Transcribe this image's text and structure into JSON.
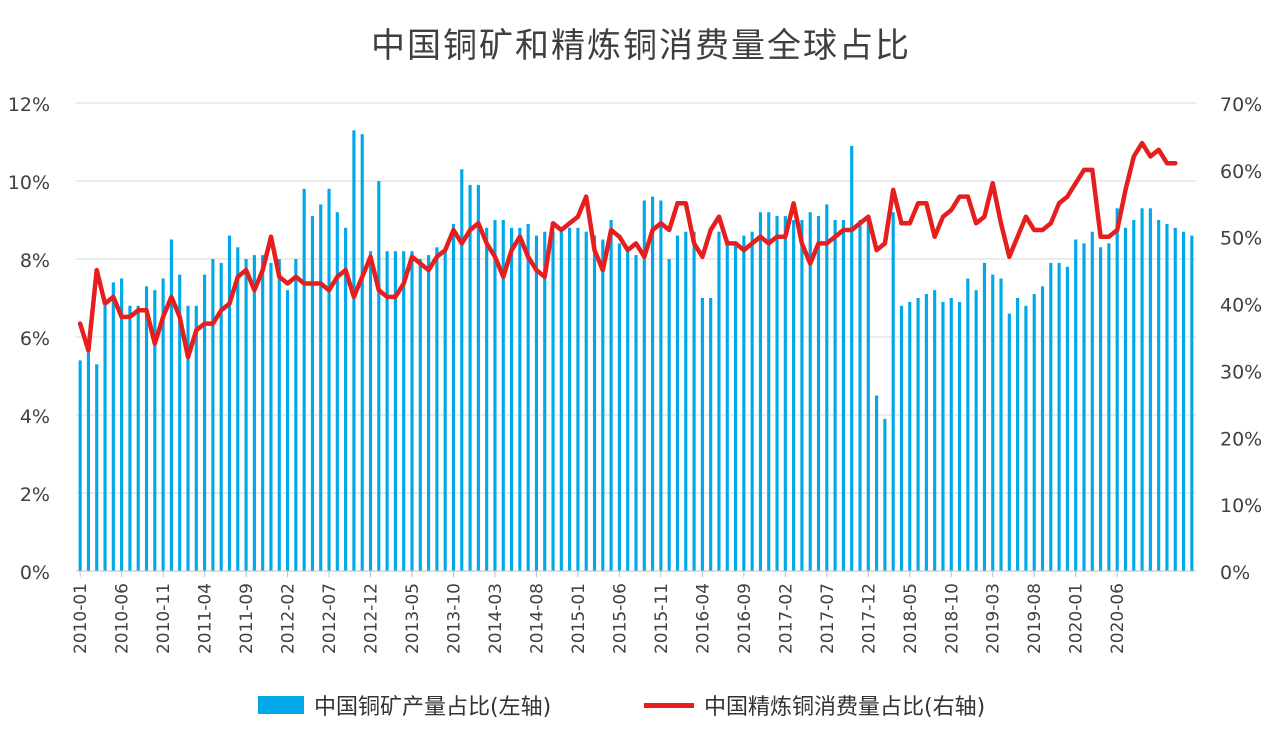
{
  "chart_data": {
    "type": "bar+line",
    "title": "中国铜矿和精炼铜消费量全球占比",
    "x_tick_labels": [
      "2010-01",
      "2010-06",
      "2010-11",
      "2011-04",
      "2011-09",
      "2012-02",
      "2012-07",
      "2012-12",
      "2013-05",
      "2013-10",
      "2014-03",
      "2014-08",
      "2015-01",
      "2015-06",
      "2015-11",
      "2016-04",
      "2016-09",
      "2017-02",
      "2017-07",
      "2017-12",
      "2018-05",
      "2018-10",
      "2019-03",
      "2019-08",
      "2020-01",
      "2020-06"
    ],
    "y_left": {
      "ticks": [
        "0%",
        "2%",
        "4%",
        "6%",
        "8%",
        "10%",
        "12%"
      ],
      "range": [
        0,
        12
      ]
    },
    "y_right": {
      "ticks": [
        "0%",
        "10%",
        "20%",
        "30%",
        "40%",
        "50%",
        "60%",
        "70%"
      ],
      "range": [
        0,
        70
      ]
    },
    "legend_position": "bottom",
    "grid": true,
    "series": [
      {
        "name": "中国铜矿产量占比(左轴)",
        "kind": "bar",
        "axis": "left",
        "color": "#00a8e8",
        "values": [
          5.4,
          5.7,
          5.3,
          6.8,
          7.4,
          7.5,
          6.8,
          6.8,
          7.3,
          7.2,
          7.5,
          8.5,
          7.6,
          6.8,
          6.8,
          7.6,
          8.0,
          7.9,
          8.6,
          8.3,
          8.0,
          8.1,
          8.1,
          7.9,
          8.0,
          7.2,
          8.0,
          9.8,
          9.1,
          9.4,
          9.8,
          9.2,
          8.8,
          11.3,
          11.2,
          8.2,
          10.0,
          8.2,
          8.2,
          8.2,
          8.2,
          8.0,
          8.1,
          8.3,
          8.3,
          8.9,
          10.3,
          9.9,
          9.9,
          8.8,
          9.0,
          9.0,
          8.8,
          8.8,
          8.9,
          8.6,
          8.7,
          8.7,
          8.8,
          8.8,
          8.8,
          8.7,
          8.6,
          8.5,
          9.0,
          8.4,
          8.2,
          8.1,
          9.5,
          9.6,
          9.5,
          8.0,
          8.6,
          8.7,
          8.7,
          7.0,
          7.0,
          8.7,
          8.5,
          8.4,
          8.6,
          8.7,
          9.2,
          9.2,
          9.1,
          9.1,
          9.0,
          9.0,
          9.2,
          9.1,
          9.4,
          9.0,
          9.0,
          10.9,
          9.0,
          9.1,
          4.5,
          3.9,
          9.2,
          6.8,
          6.9,
          7.0,
          7.1,
          7.2,
          6.9,
          7.0,
          6.9,
          7.5,
          7.2,
          7.9,
          7.6,
          7.5,
          6.6,
          7.0,
          6.8,
          7.1,
          7.3,
          7.9,
          7.9,
          7.8,
          8.5,
          8.4,
          8.7,
          8.3,
          8.4,
          9.3,
          8.8,
          9.0,
          9.3,
          9.3,
          9.0,
          8.9,
          8.8,
          8.7,
          8.6
        ]
      },
      {
        "name": "中国精炼铜消费量占比(右轴)",
        "kind": "line",
        "axis": "right",
        "color": "#e61e1e",
        "values": [
          37,
          33,
          45,
          40,
          41,
          38,
          38,
          39,
          39,
          34,
          38,
          41,
          38,
          32,
          36,
          37,
          37,
          39,
          40,
          44,
          45,
          42,
          45,
          50,
          44,
          43,
          44,
          43,
          43,
          43,
          42,
          44,
          45,
          41,
          44,
          47,
          42,
          41,
          41,
          43,
          47,
          46,
          45,
          47,
          48,
          51,
          49,
          51,
          52,
          49,
          47,
          44,
          48,
          50,
          47,
          45,
          44,
          52,
          51,
          52,
          53,
          56,
          48,
          45,
          51,
          50,
          48,
          49,
          47,
          51,
          52,
          51,
          55,
          55,
          49,
          47,
          51,
          53,
          49,
          49,
          48,
          49,
          50,
          49,
          50,
          50,
          55,
          49,
          46,
          49,
          49,
          50,
          51,
          51,
          52,
          53,
          48,
          49,
          57,
          52,
          52,
          55,
          55,
          50,
          53,
          54,
          56,
          56,
          52,
          53,
          58,
          52,
          47,
          50,
          53,
          51,
          51,
          52,
          55,
          56,
          58,
          60,
          60,
          50,
          50,
          51,
          57,
          62,
          64,
          62,
          63,
          61,
          61
        ]
      }
    ]
  },
  "legend": {
    "bar_label": "中国铜矿产量占比(左轴)",
    "line_label": "中国精炼铜消费量占比(右轴)"
  }
}
